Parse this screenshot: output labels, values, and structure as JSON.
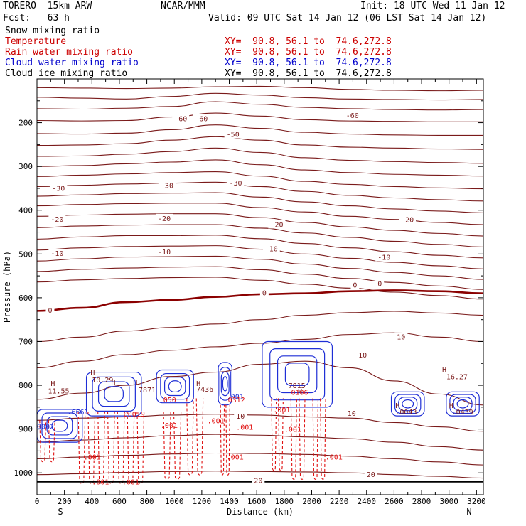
{
  "header": {
    "model": "TORERO  15km ARW",
    "org": "NCAR/MMM",
    "init": "Init: 18 UTC Wed 11 Jan 12",
    "fcst": "Fcst:   63 h",
    "valid": "Valid: 09 UTC Sat 14 Jan 12 (06 LST Sat 14 Jan 12)"
  },
  "fields": [
    {
      "name": "Snow mixing ratio",
      "color": "#000000",
      "xy": ""
    },
    {
      "name": "Temperature",
      "color": "#cc0000",
      "xy": "XY=  90.8, 56.1 to  74.6,272.8"
    },
    {
      "name": "Rain water mixing ratio",
      "color": "#cc0000",
      "xy": "XY=  90.8, 56.1 to  74.6,272.8"
    },
    {
      "name": "Cloud water mixing ratio",
      "color": "#0000cc",
      "xy": "XY=  90.8, 56.1 to  74.6,272.8"
    },
    {
      "name": "Cloud ice mixing ratio",
      "color": "#000000",
      "xy": "XY=  90.8, 56.1 to  74.6,272.8"
    }
  ],
  "colors": {
    "temperature": "#7a1a1a",
    "freezing": "#8b0000",
    "cloud_water": "#1f2fd6",
    "rain": "#e01010",
    "ground": "#000000"
  },
  "chart_data": {
    "type": "cross-section contour",
    "xlabel": "Distance (km)",
    "ylabel": "Pressure (hPa)",
    "xlim": [
      0,
      3250
    ],
    "ylim": [
      1050,
      100
    ],
    "x_ticks": [
      0,
      200,
      400,
      600,
      800,
      1000,
      1200,
      1400,
      1600,
      1800,
      2000,
      2200,
      2400,
      2600,
      2800,
      3000,
      3200
    ],
    "y_ticks": [
      200,
      300,
      400,
      500,
      600,
      700,
      800,
      900,
      1000
    ],
    "left_endpoint": "S",
    "right_endpoint": "N",
    "surface_pressure": 1020,
    "temperature_contours": [
      {
        "p": [
          120,
          121,
          122,
          121,
          118,
          117,
          120,
          124,
          126,
          127,
          126
        ]
      },
      {
        "p": [
          142,
          144,
          146,
          140,
          133,
          137,
          143,
          146,
          147,
          148,
          147
        ]
      },
      {
        "p": [
          168,
          169,
          167,
          163,
          152,
          158,
          165,
          168,
          170,
          171,
          170
        ]
      },
      {
        "p": [
          195,
          196,
          195,
          187,
          178,
          185,
          193,
          196,
          197,
          198,
          198
        ],
        "label": "-60"
      },
      {
        "p": [
          225,
          226,
          224,
          216,
          205,
          213,
          222,
          226,
          228,
          229,
          229
        ],
        "label": "-50"
      },
      {
        "p": [
          252,
          251,
          248,
          240,
          232,
          240,
          251,
          256,
          258,
          260,
          261
        ]
      },
      {
        "p": [
          277,
          276,
          272,
          266,
          258,
          268,
          280,
          286,
          289,
          291,
          293
        ]
      },
      {
        "p": [
          300,
          298,
          294,
          290,
          285,
          296,
          308,
          314,
          318,
          320,
          322
        ]
      },
      {
        "p": [
          323,
          320,
          317,
          314,
          312,
          322,
          334,
          341,
          346,
          349,
          351
        ]
      },
      {
        "p": [
          346,
          343,
          340,
          338,
          336,
          346,
          357,
          366,
          372,
          376,
          379
        ],
        "label": "-30"
      },
      {
        "p": [
          368,
          365,
          362,
          361,
          360,
          370,
          381,
          390,
          397,
          402,
          406
        ]
      },
      {
        "p": [
          390,
          387,
          385,
          384,
          384,
          394,
          404,
          414,
          421,
          428,
          433
        ]
      },
      {
        "p": [
          414,
          411,
          409,
          408,
          408,
          417,
          428,
          438,
          446,
          453,
          459
        ],
        "label": "-20"
      },
      {
        "p": [
          440,
          436,
          434,
          433,
          433,
          441,
          452,
          462,
          471,
          478,
          484
        ]
      },
      {
        "p": [
          466,
          461,
          458,
          458,
          457,
          465,
          476,
          486,
          495,
          503,
          509
        ]
      },
      {
        "p": [
          491,
          486,
          483,
          482,
          481,
          489,
          500,
          510,
          519,
          527,
          534
        ],
        "label": "-10"
      },
      {
        "p": [
          516,
          511,
          507,
          506,
          505,
          512,
          523,
          533,
          542,
          550,
          558
        ]
      },
      {
        "p": [
          540,
          535,
          532,
          530,
          529,
          536,
          546,
          556,
          565,
          573,
          581
        ]
      },
      {
        "p": [
          564,
          559,
          556,
          554,
          553,
          560,
          569,
          578,
          587,
          595,
          603
        ]
      },
      {
        "p": [
          630,
          623,
          610,
          605,
          598,
          592,
          590,
          585,
          583,
          585,
          590
        ],
        "label": "0",
        "freezing": true
      },
      {
        "p": [
          700,
          690,
          676,
          668,
          660,
          650,
          640,
          634,
          631,
          635,
          640
        ]
      },
      {
        "p": [
          760,
          745,
          730,
          720,
          712,
          704,
          695,
          684,
          680,
          690,
          700
        ]
      },
      {
        "p": [
          832,
          818,
          800,
          780,
          770,
          752,
          745,
          760,
          790,
          820,
          845
        ],
        "label": "10"
      },
      {
        "p": [
          880,
          875,
          872,
          868,
          866,
          868,
          872,
          875,
          885,
          895,
          905
        ]
      },
      {
        "p": [
          930,
          925,
          920,
          915,
          912,
          914,
          918,
          922,
          930,
          940,
          948
        ]
      },
      {
        "p": [
          968,
          964,
          960,
          957,
          955,
          956,
          958,
          962,
          968,
          975,
          982
        ]
      },
      {
        "p": [
          1004,
          1002,
          999,
          997,
          996,
          997,
          998,
          1000,
          1004,
          1008,
          1012
        ],
        "label": "20"
      }
    ],
    "contour_x": [
      0,
      325,
      650,
      975,
      1300,
      1625,
      1950,
      2275,
      2600,
      2925,
      3250
    ],
    "temperature_labels": [
      {
        "x": 1000,
        "p": 190,
        "text": "-60"
      },
      {
        "x": 1150,
        "p": 190,
        "text": "-60"
      },
      {
        "x": 2250,
        "p": 183,
        "text": "-60"
      },
      {
        "x": 1380,
        "p": 226,
        "text": "-50"
      },
      {
        "x": 110,
        "p": 349,
        "text": "-30"
      },
      {
        "x": 900,
        "p": 343,
        "text": "-30"
      },
      {
        "x": 1400,
        "p": 337,
        "text": "-30"
      },
      {
        "x": 2650,
        "p": 421,
        "text": "-20"
      },
      {
        "x": 100,
        "p": 420,
        "text": "-20"
      },
      {
        "x": 880,
        "p": 418,
        "text": "-20"
      },
      {
        "x": 1700,
        "p": 432,
        "text": "-20"
      },
      {
        "x": 2480,
        "p": 507,
        "text": "-10"
      },
      {
        "x": 100,
        "p": 498,
        "text": "-10"
      },
      {
        "x": 880,
        "p": 495,
        "text": "-10"
      },
      {
        "x": 1660,
        "p": 487,
        "text": "-10"
      },
      {
        "x": 2300,
        "p": 570,
        "text": "0"
      },
      {
        "x": 2480,
        "p": 567,
        "text": "0"
      },
      {
        "x": 1640,
        "p": 588,
        "text": "0"
      },
      {
        "x": 80,
        "p": 628,
        "text": "0"
      },
      {
        "x": 2620,
        "p": 689,
        "text": "10"
      },
      {
        "x": 2340,
        "p": 730,
        "text": "10"
      },
      {
        "x": 2260,
        "p": 863,
        "text": "10"
      },
      {
        "x": 1450,
        "p": 870,
        "text": "10"
      },
      {
        "x": 2400,
        "p": 1003,
        "text": "20"
      },
      {
        "x": 1580,
        "p": 1017,
        "text": "20"
      }
    ],
    "cloud_water_regions": [
      {
        "x": [
          0,
          330
        ],
        "p": [
          855,
          930
        ]
      },
      {
        "x": [
          360,
          760
        ],
        "p": [
          770,
          870
        ]
      },
      {
        "x": [
          870,
          1140
        ],
        "p": [
          765,
          840
        ]
      },
      {
        "x": [
          1320,
          1420
        ],
        "p": [
          748,
          845
        ]
      },
      {
        "x": [
          1640,
          2150
        ],
        "p": [
          700,
          850
        ]
      },
      {
        "x": [
          2580,
          2820
        ],
        "p": [
          815,
          870
        ]
      },
      {
        "x": [
          2980,
          3220
        ],
        "p": [
          815,
          870
        ]
      }
    ],
    "rain_regions": [
      {
        "x": [
          10,
          140
        ],
        "p": [
          880,
          970
        ]
      },
      {
        "x": [
          290,
          790
        ],
        "p": [
          860,
          1020
        ]
      },
      {
        "x": [
          910,
          1060
        ],
        "p": [
          860,
          1010
        ]
      },
      {
        "x": [
          1080,
          1220
        ],
        "p": [
          830,
          1000
        ]
      },
      {
        "x": [
          1330,
          1410
        ],
        "p": [
          845,
          1000
        ]
      },
      {
        "x": [
          1700,
          1800
        ],
        "p": [
          830,
          990
        ]
      },
      {
        "x": [
          1840,
          1960
        ],
        "p": [
          830,
          1010
        ]
      },
      {
        "x": [
          2000,
          2110
        ],
        "p": [
          830,
          1010
        ]
      }
    ],
    "annotations": [
      {
        "x": 100,
        "p": 795,
        "text": "H",
        "kind": "high"
      },
      {
        "x": 80,
        "p": 812,
        "text": "11.55",
        "kind": "high"
      },
      {
        "x": 390,
        "p": 770,
        "text": "H",
        "kind": "high"
      },
      {
        "x": 400,
        "p": 787,
        "text": "10.29",
        "kind": "high"
      },
      {
        "x": 2950,
        "p": 763,
        "text": "H",
        "kind": "high"
      },
      {
        "x": 2980,
        "p": 780,
        "text": "16.27",
        "kind": "high"
      },
      {
        "x": 540,
        "p": 793,
        "text": "H",
        "kind": "high"
      },
      {
        "x": 700,
        "p": 793,
        "text": "H",
        "kind": "high"
      },
      {
        "x": 740,
        "p": 810,
        "text": "7871",
        "kind": "high"
      },
      {
        "x": 1160,
        "p": 795,
        "text": "H",
        "kind": "high"
      },
      {
        "x": 1160,
        "p": 808,
        "text": "7436",
        "kind": "high"
      },
      {
        "x": 1830,
        "p": 800,
        "text": "7815",
        "kind": "high"
      },
      {
        "x": 1900,
        "p": 813,
        "text": "H",
        "kind": "high"
      },
      {
        "x": 2610,
        "p": 845,
        "text": "H",
        "kind": "high"
      },
      {
        "x": 2610,
        "p": 860,
        "text": ".0043",
        "kind": "high"
      },
      {
        "x": 3000,
        "p": 845,
        "text": "H",
        "kind": "high"
      },
      {
        "x": 3020,
        "p": 860,
        "text": ".0439",
        "kind": "high"
      },
      {
        "x": 220,
        "p": 860,
        "text": ".6661",
        "kind": "cloud"
      },
      {
        "x": 1380,
        "p": 825,
        "text": ".001",
        "kind": "cloud"
      },
      {
        "x": 920,
        "p": 832,
        "text": "050",
        "kind": "rain"
      },
      {
        "x": 1390,
        "p": 832,
        "text": "0312",
        "kind": "rain"
      },
      {
        "x": 630,
        "p": 865,
        "text": "00019",
        "kind": "rain"
      },
      {
        "x": 1850,
        "p": 815,
        "text": "0106",
        "kind": "rain"
      },
      {
        "x": 900,
        "p": 891,
        "text": ".001",
        "kind": "rain"
      },
      {
        "x": 1240,
        "p": 880,
        "text": ".001",
        "kind": "rain"
      },
      {
        "x": 1450,
        "p": 895,
        "text": ".001",
        "kind": "rain"
      },
      {
        "x": 1720,
        "p": 855,
        "text": ".001",
        "kind": "rain"
      },
      {
        "x": 1800,
        "p": 900,
        "text": ".001",
        "kind": "rain"
      },
      {
        "x": 340,
        "p": 963,
        "text": ".001",
        "kind": "rain"
      },
      {
        "x": 1380,
        "p": 963,
        "text": ".001",
        "kind": "rain"
      },
      {
        "x": 2100,
        "p": 963,
        "text": ".001",
        "kind": "rain"
      },
      {
        "x": 400,
        "p": 1020,
        "text": ".001",
        "kind": "rain"
      },
      {
        "x": 620,
        "p": 1020,
        "text": ".001",
        "kind": "rain"
      },
      {
        "x": 0,
        "p": 893,
        "text": "0002",
        "kind": "cloud"
      }
    ]
  }
}
